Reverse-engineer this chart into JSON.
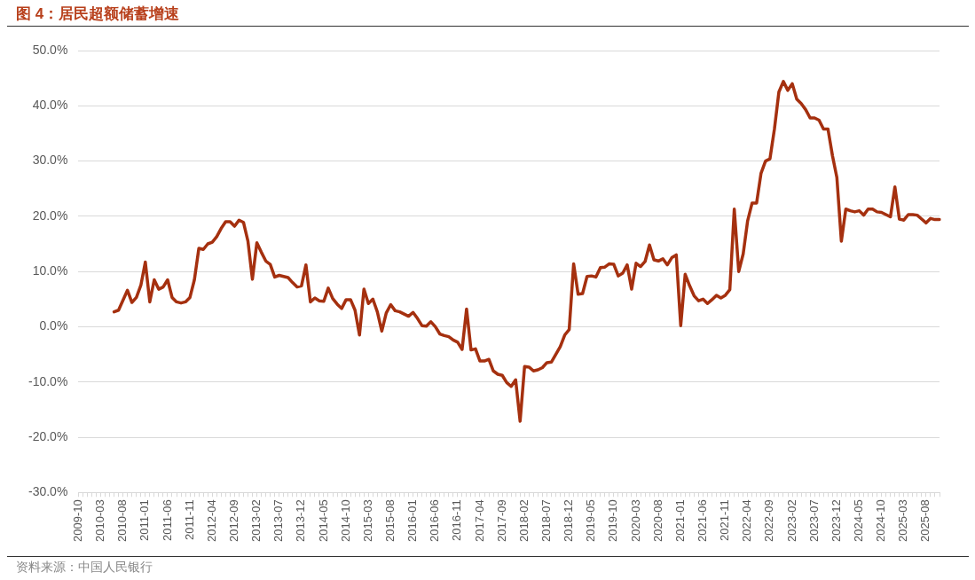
{
  "chart_data": {
    "type": "line",
    "title": "图 4：居民超额储蓄增速",
    "annotations": [
      "资料来源：中国人民银行"
    ],
    "categories": [
      "2009-10",
      null,
      null,
      null,
      null,
      "2010-03",
      null,
      null,
      null,
      null,
      "2010-08",
      null,
      null,
      null,
      null,
      "2011-01",
      null,
      null,
      null,
      null,
      "2011-06",
      null,
      null,
      null,
      null,
      "2011-11",
      null,
      null,
      null,
      null,
      "2012-04",
      null,
      null,
      null,
      null,
      "2012-09",
      null,
      null,
      null,
      null,
      "2013-02",
      null,
      null,
      null,
      null,
      "2013-07",
      null,
      null,
      null,
      null,
      "2013-12",
      null,
      null,
      null,
      null,
      "2014-05",
      null,
      null,
      null,
      null,
      "2014-10",
      null,
      null,
      null,
      null,
      "2015-03",
      null,
      null,
      null,
      null,
      "2015-08",
      null,
      null,
      null,
      null,
      "2016-01",
      null,
      null,
      null,
      null,
      "2016-06",
      null,
      null,
      null,
      null,
      "2016-11",
      null,
      null,
      null,
      null,
      "2017-04",
      null,
      null,
      null,
      null,
      "2017-09",
      null,
      null,
      null,
      null,
      "2018-02",
      null,
      null,
      null,
      null,
      "2018-07",
      null,
      null,
      null,
      null,
      "2018-12",
      null,
      null,
      null,
      null,
      "2019-05",
      null,
      null,
      null,
      null,
      "2019-10",
      null,
      null,
      null,
      null,
      "2020-03",
      null,
      null,
      null,
      null,
      "2020-08",
      null,
      null,
      null,
      null,
      "2021-01",
      null,
      null,
      null,
      null,
      "2021-06",
      null,
      null,
      null,
      null,
      "2021-11",
      null,
      null,
      null,
      null,
      "2022-04",
      null,
      null,
      null,
      null,
      "2022-09",
      null,
      null,
      null,
      null,
      "2023-02",
      null,
      null,
      null,
      null,
      "2023-07",
      null,
      null,
      null,
      null,
      "2023-12",
      null,
      null,
      null,
      null,
      "2024-05",
      null,
      null,
      null,
      null,
      "2024-10",
      null,
      null,
      null,
      null,
      "2025-03",
      null,
      null,
      null,
      null,
      "2025-08",
      null,
      null,
      null
    ],
    "series": [
      {
        "color": "#a5300f",
        "values": [
          null,
          null,
          null,
          null,
          null,
          null,
          null,
          null,
          2.7,
          3.0,
          4.8,
          6.6,
          4.4,
          5.3,
          7.5,
          11.7,
          4.5,
          8.5,
          6.8,
          7.2,
          8.5,
          5.3,
          4.5,
          4.3,
          4.5,
          5.3,
          8.5,
          14.2,
          14.0,
          15.0,
          15.3,
          16.3,
          17.8,
          19.0,
          19.0,
          18.2,
          19.3,
          18.9,
          15.5,
          8.6,
          15.2,
          13.5,
          11.9,
          11.3,
          9.0,
          9.3,
          9.1,
          8.9,
          8.0,
          7.2,
          7.4,
          11.2,
          4.5,
          5.2,
          4.7,
          4.6,
          7.0,
          5.1,
          4.1,
          3.3,
          4.9,
          4.9,
          3.0,
          -1.5,
          6.8,
          4.2,
          5.0,
          2.7,
          -0.8,
          2.5,
          4.0,
          2.9,
          2.7,
          2.3,
          1.9,
          2.6,
          1.5,
          0.2,
          0.1,
          0.9,
          0.0,
          -1.3,
          -1.6,
          -1.8,
          -2.4,
          -2.8,
          -4.1,
          3.2,
          -4.2,
          -4.0,
          -6.2,
          -6.2,
          -5.9,
          -8.0,
          -8.6,
          -8.8,
          -10.1,
          -10.8,
          -9.6,
          -17.1,
          -7.2,
          -7.3,
          -8.0,
          -7.8,
          -7.4,
          -6.5,
          -6.4,
          -5.0,
          -3.6,
          -1.5,
          -0.5,
          11.4,
          5.9,
          6.0,
          9.1,
          9.2,
          9.0,
          10.7,
          10.8,
          11.4,
          11.3,
          9.2,
          9.7,
          11.2,
          6.8,
          11.5,
          10.9,
          11.8,
          14.8,
          12.1,
          11.9,
          12.3,
          11.2,
          12.5,
          13.0,
          0.2,
          9.5,
          7.4,
          5.6,
          4.7,
          5.0,
          4.2,
          4.9,
          5.7,
          5.2,
          5.7,
          6.7,
          21.3,
          10.0,
          13.2,
          19.2,
          22.4,
          22.4,
          27.8,
          30.0,
          30.4,
          35.8,
          42.5,
          44.4,
          42.8,
          44.0,
          41.2,
          40.4,
          39.3,
          37.8,
          37.8,
          37.4,
          35.8,
          35.8,
          31.0,
          27.0,
          15.5,
          21.3,
          21.0,
          20.8,
          21.0,
          20.2,
          21.3,
          21.3,
          20.8,
          20.7,
          20.3,
          19.9,
          25.3,
          19.5,
          19.3,
          20.3,
          20.3,
          20.2,
          19.5,
          18.8,
          19.6,
          19.4,
          19.4
        ]
      }
    ],
    "ylim": [
      -30,
      50
    ],
    "yticks": [
      {
        "value": -30,
        "label": "-30.0%"
      },
      {
        "value": -20,
        "label": "-20.0%"
      },
      {
        "value": -10,
        "label": "-10.0%"
      },
      {
        "value": 0,
        "label": "0.0%"
      },
      {
        "value": 10,
        "label": "10.0%"
      },
      {
        "value": 20,
        "label": "20.0%"
      },
      {
        "value": 30,
        "label": "30.0%"
      },
      {
        "value": 40,
        "label": "40.0%"
      },
      {
        "value": 50,
        "label": "50.0%"
      }
    ],
    "grid": "y",
    "legend": false,
    "marker": "none",
    "line_style": "solid"
  }
}
